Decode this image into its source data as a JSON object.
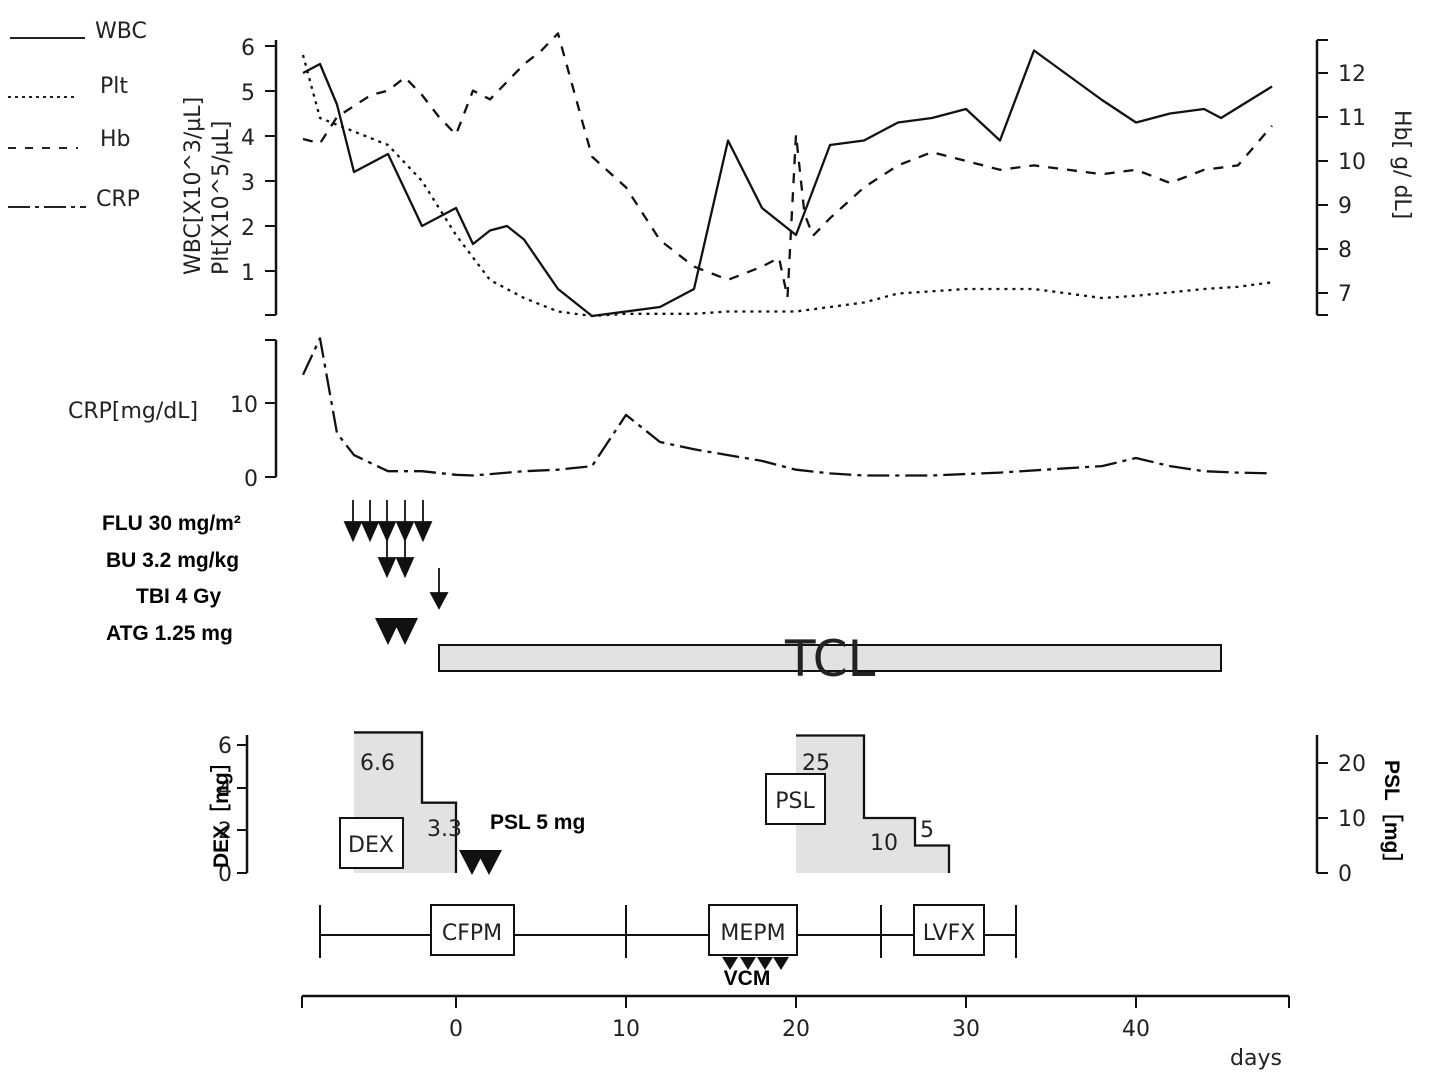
{
  "legend": [
    {
      "name": "WBC",
      "style": "solid"
    },
    {
      "name": "Plt",
      "style": "dotted"
    },
    {
      "name": "Hb",
      "style": "dashed"
    },
    {
      "name": "CRP",
      "style": "dashdot"
    }
  ],
  "axes": {
    "left_top_label_1": "WBC[X10^3/µL]",
    "left_top_label_2": "Plt[X10^5/µL]",
    "right_top_label": "Hb[ g/ dL]",
    "crp_label": "CRP[mg/dL]",
    "dex_label": "DEX［mg］",
    "psl_label": "PSL［mg］",
    "x_label": "days",
    "left_top_ticks": [
      "1",
      "2",
      "3",
      "4",
      "5",
      "6"
    ],
    "right_top_ticks": [
      "7",
      "8",
      "9",
      "10",
      "11",
      "12"
    ],
    "crp_ticks": [
      "0",
      "10"
    ],
    "dex_ticks": [
      "0",
      "2",
      "4",
      "6"
    ],
    "psl_ticks": [
      "0",
      "10",
      "20"
    ],
    "x_ticks": [
      "0",
      "10",
      "20",
      "30",
      "40"
    ]
  },
  "treatments": {
    "flu": "FLU 30 mg/m²",
    "bu": "BU 3.2 mg/kg",
    "tbi": "TBI 4 Gy",
    "atg": "ATG 1.25 mg",
    "tcl": "TCL",
    "psl5": "PSL 5 mg",
    "vcm": "VCM"
  },
  "steroids": {
    "dex_box": "DEX",
    "psl_box": "PSL",
    "dex_values": [
      "6.6",
      "3.3"
    ],
    "psl_values": [
      "25",
      "10",
      "5"
    ]
  },
  "antibiotics": [
    "CFPM",
    "MEPM",
    "LVFX"
  ],
  "chart_data": {
    "type": "line",
    "x_unit": "days",
    "xlim": [
      -9,
      49
    ],
    "series": [
      {
        "name": "WBC",
        "axis": "left",
        "unit": "X10^3/µL",
        "x": [
          -9,
          -8,
          -7,
          -6,
          -4,
          -2,
          -1,
          0,
          1,
          2,
          3,
          4,
          6,
          8,
          12,
          14,
          16,
          18,
          20,
          22,
          24,
          26,
          28,
          30,
          32,
          34,
          38,
          40,
          42,
          44,
          45,
          48
        ],
        "y": [
          5.4,
          5.6,
          4.7,
          3.2,
          3.6,
          2.0,
          2.2,
          2.4,
          1.6,
          1.9,
          2.0,
          1.7,
          0.6,
          0.0,
          0.2,
          0.6,
          3.9,
          2.4,
          1.8,
          3.8,
          3.9,
          4.3,
          4.4,
          4.6,
          3.9,
          5.9,
          4.8,
          4.3,
          4.5,
          4.6,
          4.4,
          5.1
        ]
      },
      {
        "name": "Plt",
        "axis": "left",
        "unit": "X10^5/µL",
        "x": [
          -9,
          -8,
          -6,
          -4,
          -3,
          -2,
          0,
          2,
          4,
          6,
          8,
          10,
          14,
          16,
          18,
          20,
          22,
          24,
          26,
          28,
          30,
          34,
          38,
          40,
          44,
          46,
          48
        ],
        "y": [
          5.8,
          4.4,
          4.1,
          3.8,
          3.4,
          3.0,
          1.8,
          0.8,
          0.4,
          0.1,
          0.0,
          0.05,
          0.05,
          0.1,
          0.1,
          0.1,
          0.2,
          0.3,
          0.5,
          0.55,
          0.6,
          0.6,
          0.4,
          0.45,
          0.6,
          0.65,
          0.75
        ]
      },
      {
        "name": "Hb",
        "axis": "right",
        "unit": "g/dL",
        "x": [
          -9,
          -8,
          -7,
          -5,
          -4,
          -3,
          -2,
          -1,
          0,
          1,
          2,
          3,
          4,
          5,
          6,
          8,
          10,
          12,
          14,
          16,
          18,
          19,
          19.5,
          20,
          20.5,
          21,
          22,
          24,
          26,
          28,
          30,
          32,
          34,
          38,
          40,
          42,
          44,
          46,
          48
        ],
        "y": [
          10.5,
          10.4,
          11.0,
          11.5,
          11.6,
          11.9,
          11.5,
          11.0,
          10.6,
          11.6,
          11.4,
          11.8,
          12.2,
          12.5,
          12.9,
          10.1,
          9.4,
          8.2,
          7.6,
          7.3,
          7.6,
          7.8,
          6.9,
          10.6,
          8.8,
          8.3,
          8.7,
          9.4,
          9.9,
          10.2,
          10.0,
          9.8,
          9.9,
          9.7,
          9.8,
          9.5,
          9.8,
          9.9,
          10.8
        ]
      },
      {
        "name": "CRP",
        "axis": "crp",
        "unit": "mg/dL",
        "x": [
          -9,
          -8,
          -7,
          -6,
          -4,
          -2,
          0,
          1,
          2,
          4,
          6,
          8,
          10,
          12,
          14,
          16,
          18,
          20,
          22,
          24,
          28,
          32,
          36,
          38,
          40,
          42,
          44,
          46,
          48
        ],
        "y": [
          14,
          19,
          6,
          3,
          0.8,
          0.8,
          0.3,
          0.2,
          0.4,
          0.8,
          1.0,
          1.5,
          8.5,
          4.8,
          3.8,
          3.0,
          2.2,
          1.0,
          0.5,
          0.2,
          0.2,
          0.6,
          1.2,
          1.5,
          2.6,
          1.5,
          0.8,
          0.6,
          0.5
        ]
      }
    ],
    "dex_steps": {
      "unit": "mg",
      "x": [
        -6,
        -2,
        0
      ],
      "y": [
        6.6,
        3.3,
        0
      ]
    },
    "psl_steps": {
      "unit": "mg",
      "x": [
        20,
        24,
        27,
        29
      ],
      "y": [
        25,
        10,
        5,
        0
      ]
    },
    "left_ylim": [
      0,
      6
    ],
    "right_ylim": [
      6.6,
      12.8
    ],
    "crp_ylim": [
      0,
      19
    ],
    "dex_ylim": [
      0,
      6.6
    ],
    "psl_ylim": [
      0,
      25
    ]
  }
}
